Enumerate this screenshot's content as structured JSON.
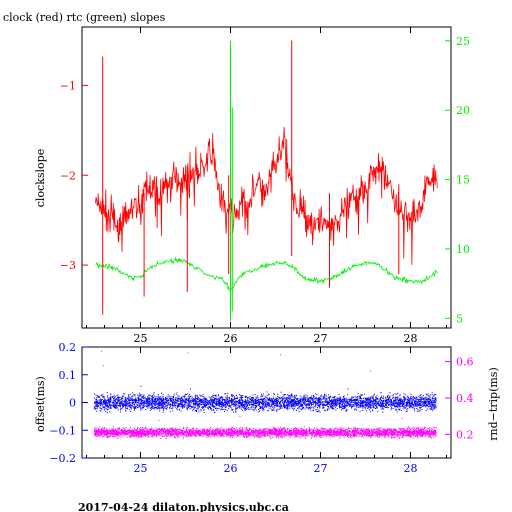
{
  "title": "clock (red) rtc (green) slopes",
  "footer": "2017-04-24 dilaton.physics.ubc.ca",
  "colors": {
    "clock": "#ff0000",
    "rtc": "#00ee00",
    "offset": "#0000ff",
    "roundtrip": "#ff00ff",
    "axis": "#000000"
  },
  "chart_data": [
    {
      "type": "line",
      "title": "clock (red) rtc (green) slopes",
      "ylabel": "clockslope",
      "xlim": [
        24.35,
        28.45
      ],
      "ylim": [
        -3.7,
        -0.35
      ],
      "y2lim": [
        4.3,
        26.0
      ],
      "x_ticks": [
        25,
        26,
        27,
        28
      ],
      "x_tick_labels": [
        "25",
        "26",
        "27",
        "28"
      ],
      "y_ticks": [
        -3,
        -2,
        -1
      ],
      "y_tick_labels": [
        "−3",
        "−2",
        "−1"
      ],
      "y2_ticks": [
        5,
        10,
        15,
        20,
        25
      ],
      "y2_tick_labels": [
        "5",
        "10",
        "15",
        "20",
        "25"
      ],
      "series": [
        {
          "axis": "left",
          "color": "#ff0000",
          "x": [
            24.5,
            24.6,
            24.7,
            24.8,
            24.9,
            25.0,
            25.1,
            25.2,
            25.3,
            25.4,
            25.5,
            25.6,
            25.7,
            25.8,
            25.9,
            26.0,
            26.1,
            26.2,
            26.3,
            26.4,
            26.5,
            26.6,
            26.7,
            26.8,
            26.9,
            27.0,
            27.1,
            27.2,
            27.3,
            27.4,
            27.5,
            27.6,
            27.7,
            27.8,
            27.9,
            28.0,
            28.1,
            28.2,
            28.3
          ],
          "values": [
            -2.3,
            -2.4,
            -2.5,
            -2.55,
            -2.4,
            -2.3,
            -2.1,
            -2.25,
            -2.1,
            -2.0,
            -2.05,
            -1.95,
            -1.9,
            -1.7,
            -2.3,
            -2.45,
            -2.4,
            -2.3,
            -2.1,
            -2.2,
            -1.9,
            -1.6,
            -2.3,
            -2.4,
            -2.5,
            -2.55,
            -2.55,
            -2.5,
            -2.35,
            -2.2,
            -2.1,
            -1.95,
            -1.9,
            -2.2,
            -2.4,
            -2.5,
            -2.35,
            -2.05,
            -2.0
          ]
        },
        {
          "axis": "right",
          "color": "#00ee00",
          "x": [
            24.5,
            24.6,
            24.7,
            24.8,
            24.9,
            25.0,
            25.1,
            25.2,
            25.3,
            25.4,
            25.5,
            25.6,
            25.7,
            25.8,
            25.9,
            26.0,
            26.1,
            26.2,
            26.3,
            26.4,
            26.5,
            26.6,
            26.7,
            26.8,
            26.9,
            27.0,
            27.1,
            27.2,
            27.3,
            27.4,
            27.5,
            27.6,
            27.7,
            27.8,
            27.9,
            28.0,
            28.1,
            28.2,
            28.3
          ],
          "values": [
            8.9,
            8.8,
            8.6,
            8.3,
            7.9,
            8.0,
            8.6,
            8.9,
            9.1,
            9.2,
            9.1,
            8.7,
            8.3,
            8.0,
            7.9,
            7.0,
            8.0,
            8.4,
            8.6,
            8.8,
            8.9,
            9.0,
            8.7,
            8.0,
            7.8,
            7.7,
            7.8,
            8.1,
            8.5,
            8.8,
            9.0,
            9.0,
            8.6,
            8.0,
            7.8,
            7.7,
            7.6,
            7.9,
            8.4
          ]
        }
      ],
      "spikes": [
        {
          "series": 0,
          "x": 24.58,
          "y_min": -3.55,
          "y_max": -0.68
        },
        {
          "series": 0,
          "x": 25.04,
          "y_min": -3.35,
          "y_max": -2.2
        },
        {
          "series": 0,
          "x": 25.52,
          "y_min": -3.3,
          "y_max": -1.9
        },
        {
          "series": 0,
          "x": 25.98,
          "y_min": -3.1,
          "y_max": -2.0
        },
        {
          "series": 0,
          "x": 26.68,
          "y_min": -2.9,
          "y_max": -0.5
        },
        {
          "series": 0,
          "x": 27.1,
          "y_min": -3.25,
          "y_max": -2.2
        },
        {
          "series": 0,
          "x": 27.87,
          "y_min": -3.1,
          "y_max": -2.1
        },
        {
          "series": 1,
          "x": 26.0,
          "y_min": 4.8,
          "y_max": 25.0
        },
        {
          "series": 1,
          "x": 26.02,
          "y_min": 5.5,
          "y_max": 20.2
        }
      ]
    },
    {
      "type": "scatter",
      "ylabel": "offset(ms)",
      "y2label": "rnd−trip(ms)",
      "xlim": [
        24.35,
        28.45
      ],
      "ylim": [
        -0.2,
        0.2
      ],
      "y2lim": [
        0.07,
        0.68
      ],
      "x_ticks": [
        25,
        26,
        27,
        28
      ],
      "x_tick_labels": [
        "25",
        "26",
        "27",
        "28"
      ],
      "y_ticks": [
        -0.2,
        -0.1,
        0,
        0.1,
        0.2
      ],
      "y_tick_labels": [
        "−0.2",
        "−0.1",
        "0",
        "0.1",
        "0.2"
      ],
      "y2_ticks": [
        0.2,
        0.4,
        0.6
      ],
      "y2_tick_labels": [
        "0.2",
        "0.4",
        "0.6"
      ],
      "series": [
        {
          "axis": "left",
          "color": "#0000ff",
          "x_range": [
            24.48,
            28.28
          ],
          "center": 0.0,
          "spread": 0.025,
          "outliers": [
            [
              25.0,
              0.06
            ],
            [
              25.55,
              0.05
            ],
            [
              26.4,
              0.04
            ],
            [
              27.3,
              0.05
            ],
            [
              28.0,
              0.03
            ]
          ]
        },
        {
          "axis": "right",
          "color": "#ff00ff",
          "x_range": [
            24.48,
            28.28
          ],
          "center": 0.21,
          "spread": 0.022,
          "outliers": [
            [
              24.56,
              0.66
            ],
            [
              24.58,
              0.58
            ],
            [
              25.52,
              0.65
            ],
            [
              26.55,
              0.64
            ],
            [
              27.55,
              0.55
            ],
            [
              26.1,
              0.3
            ],
            [
              25.2,
              0.28
            ],
            [
              27.9,
              0.29
            ]
          ]
        }
      ]
    }
  ]
}
